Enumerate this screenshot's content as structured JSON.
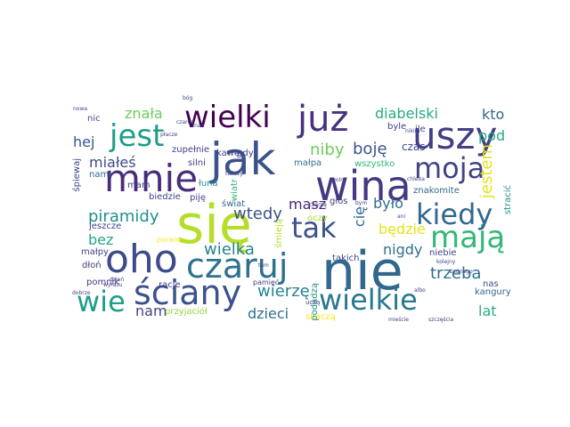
{
  "title": "",
  "words": [
    {
      "text": "się",
      "color": "#b5de2b",
      "vertical": false
    },
    {
      "text": "nie",
      "color": "#31688e",
      "vertical": false
    },
    {
      "text": "jak",
      "color": "#3b528b",
      "vertical": false
    },
    {
      "text": "wina",
      "color": "#443983",
      "vertical": false
    },
    {
      "text": "oho",
      "color": "#3e4a89",
      "vertical": false
    },
    {
      "text": "mnie",
      "color": "#472d7b",
      "vertical": false
    },
    {
      "text": "uszy",
      "color": "#433e85",
      "vertical": false
    },
    {
      "text": "już",
      "color": "#46327e",
      "vertical": false
    },
    {
      "text": "czaruj",
      "color": "#2c728e",
      "vertical": false
    },
    {
      "text": "ściany",
      "color": "#3b528b",
      "vertical": false
    },
    {
      "text": "wielki",
      "color": "#440154",
      "vertical": false
    },
    {
      "text": "jest",
      "color": "#1f9e89",
      "vertical": false
    },
    {
      "text": "mają",
      "color": "#35b779",
      "vertical": false
    },
    {
      "text": "kiedy",
      "color": "#31688e",
      "vertical": false
    },
    {
      "text": "wielkie",
      "color": "#2a788e",
      "vertical": false
    },
    {
      "text": "moja",
      "color": "#414487",
      "vertical": false
    },
    {
      "text": "tak",
      "color": "#3b528b",
      "vertical": false
    },
    {
      "text": "wie",
      "color": "#1f9e89",
      "vertical": false
    },
    {
      "text": "piramidy",
      "color": "#218f8d",
      "vertical": false
    },
    {
      "text": "wtedy",
      "color": "#3b528b",
      "vertical": false
    },
    {
      "text": "wielka",
      "color": "#26828e",
      "vertical": false
    },
    {
      "text": "wierzę",
      "color": "#25848e",
      "vertical": false
    },
    {
      "text": "trzeba",
      "color": "#2e6f8e",
      "vertical": false
    },
    {
      "text": "diabelski",
      "color": "#25ab82",
      "vertical": false
    },
    {
      "text": "kto",
      "color": "#31688e",
      "vertical": false
    },
    {
      "text": "pod",
      "color": "#25ab82",
      "vertical": false
    },
    {
      "text": "niby",
      "color": "#6ccd5a",
      "vertical": false
    },
    {
      "text": "boję",
      "color": "#39558c",
      "vertical": false
    },
    {
      "text": "masz",
      "color": "#482576",
      "vertical": false
    },
    {
      "text": "było",
      "color": "#2e6e8e",
      "vertical": false
    },
    {
      "text": "będzie",
      "color": "#e5e419",
      "vertical": false
    },
    {
      "text": "nigdy",
      "color": "#2d708e",
      "vertical": false
    },
    {
      "text": "dzieci",
      "color": "#2d708e",
      "vertical": false
    },
    {
      "text": "lat",
      "color": "#28ae80",
      "vertical": false
    },
    {
      "text": "nam",
      "color": "#404387",
      "vertical": false
    },
    {
      "text": "bez",
      "color": "#22a884",
      "vertical": false
    },
    {
      "text": "hej",
      "color": "#3b528b",
      "vertical": false
    },
    {
      "text": "miałeś",
      "color": "#3e4a89",
      "vertical": false
    },
    {
      "text": "znała",
      "color": "#6ccd5a",
      "vertical": false
    },
    {
      "text": "nic",
      "color": "#3b528b",
      "vertical": false
    },
    {
      "text": "znakomite",
      "color": "#31688e",
      "vertical": false
    },
    {
      "text": "wszystko",
      "color": "#35b779",
      "vertical": false
    },
    {
      "text": "czas",
      "color": "#3e4a89",
      "vertical": false
    },
    {
      "text": "jestem",
      "color": "#e5e419",
      "vertical": true
    },
    {
      "text": "cię",
      "color": "#31688e",
      "vertical": true
    },
    {
      "text": "przyjaciół",
      "color": "#8fd744",
      "vertical": false
    },
    {
      "text": "pomnik",
      "color": "#443983",
      "vertical": false
    },
    {
      "text": "nas",
      "color": "#3b528b",
      "vertical": false
    },
    {
      "text": "kangury",
      "color": "#31688e",
      "vertical": false
    },
    {
      "text": "racje",
      "color": "#404387",
      "vertical": false
    },
    {
      "text": "takich",
      "color": "#404387",
      "vertical": false
    },
    {
      "text": "kawę",
      "color": "#404387",
      "vertical": false
    },
    {
      "text": "gdy",
      "color": "#404387",
      "vertical": false
    },
    {
      "text": "silni",
      "color": "#404387",
      "vertical": false
    },
    {
      "text": "zupełnie",
      "color": "#404387",
      "vertical": false
    },
    {
      "text": "małpa",
      "color": "#2d708e",
      "vertical": false
    },
    {
      "text": "mam",
      "color": "#404387",
      "vertical": false
    },
    {
      "text": "biedzie",
      "color": "#404387",
      "vertical": false
    },
    {
      "text": "piję",
      "color": "#404387",
      "vertical": false
    },
    {
      "text": "świat",
      "color": "#31688e",
      "vertical": false
    },
    {
      "text": "niebie",
      "color": "#404387",
      "vertical": false
    },
    {
      "text": "oczy",
      "color": "#b5de2b",
      "vertical": false
    },
    {
      "text": "głos",
      "color": "#404387",
      "vertical": false
    },
    {
      "text": "łuna",
      "color": "#21918c",
      "vertical": false
    },
    {
      "text": "dłoń",
      "color": "#404387",
      "vertical": false
    },
    {
      "text": "małpy",
      "color": "#404387",
      "vertical": false
    },
    {
      "text": "jeszcze",
      "color": "#404387",
      "vertical": false
    },
    {
      "text": "skaczą",
      "color": "#fde725",
      "vertical": false
    },
    {
      "text": "śpiewaj",
      "color": "#404387",
      "vertical": true
    },
    {
      "text": "nami",
      "color": "#31688e",
      "vertical": false
    },
    {
      "text": "ile",
      "color": "#404387",
      "vertical": false
    },
    {
      "text": "byle",
      "color": "#404387",
      "vertical": false
    },
    {
      "text": "stracić",
      "color": "#21918c",
      "vertical": true
    },
    {
      "text": "podadzą",
      "color": "#21918c",
      "vertical": true
    },
    {
      "text": "śmieją",
      "color": "#b5de2b",
      "vertical": true
    },
    {
      "text": "wiatr",
      "color": "#35b779",
      "vertical": true
    },
    {
      "text": "porwie",
      "color": "#fde725",
      "vertical": false
    },
    {
      "text": "pamięć",
      "color": "#404387",
      "vertical": false
    },
    {
      "text": "uczą",
      "color": "#404387",
      "vertical": false
    },
    {
      "text": "bóg",
      "color": "#404387",
      "vertical": false
    },
    {
      "text": "nowa",
      "color": "#404387",
      "vertical": false
    },
    {
      "text": "czarna",
      "color": "#404387",
      "vertical": false
    },
    {
      "text": "znak",
      "color": "#404387",
      "vertical": false
    },
    {
      "text": "nikim",
      "color": "#404387",
      "vertical": false
    },
    {
      "text": "kolejny",
      "color": "#404387",
      "vertical": false
    },
    {
      "text": "chleba",
      "color": "#404387",
      "vertical": false
    },
    {
      "text": "żadnego",
      "color": "#404387",
      "vertical": false
    },
    {
      "text": "ani",
      "color": "#404387",
      "vertical": false
    },
    {
      "text": "albo",
      "color": "#404387",
      "vertical": false
    },
    {
      "text": "szczęścia",
      "color": "#404387",
      "vertical": false
    },
    {
      "text": "mieście",
      "color": "#404387",
      "vertical": false
    },
    {
      "text": "dzień",
      "color": "#404387",
      "vertical": false
    },
    {
      "text": "wyrazu",
      "color": "#404387",
      "vertical": false
    },
    {
      "text": "dobrze",
      "color": "#404387",
      "vertical": false
    },
    {
      "text": "czarną",
      "color": "#404387",
      "vertical": false
    },
    {
      "text": "tam",
      "color": "#404387",
      "vertical": false
    },
    {
      "text": "bym",
      "color": "#404387",
      "vertical": false
    },
    {
      "text": "tańczy",
      "color": "#404387",
      "vertical": false
    },
    {
      "text": "płacze",
      "color": "#404387",
      "vertical": false
    },
    {
      "text": "wolny",
      "color": "#404387",
      "vertical": false
    }
  ]
}
